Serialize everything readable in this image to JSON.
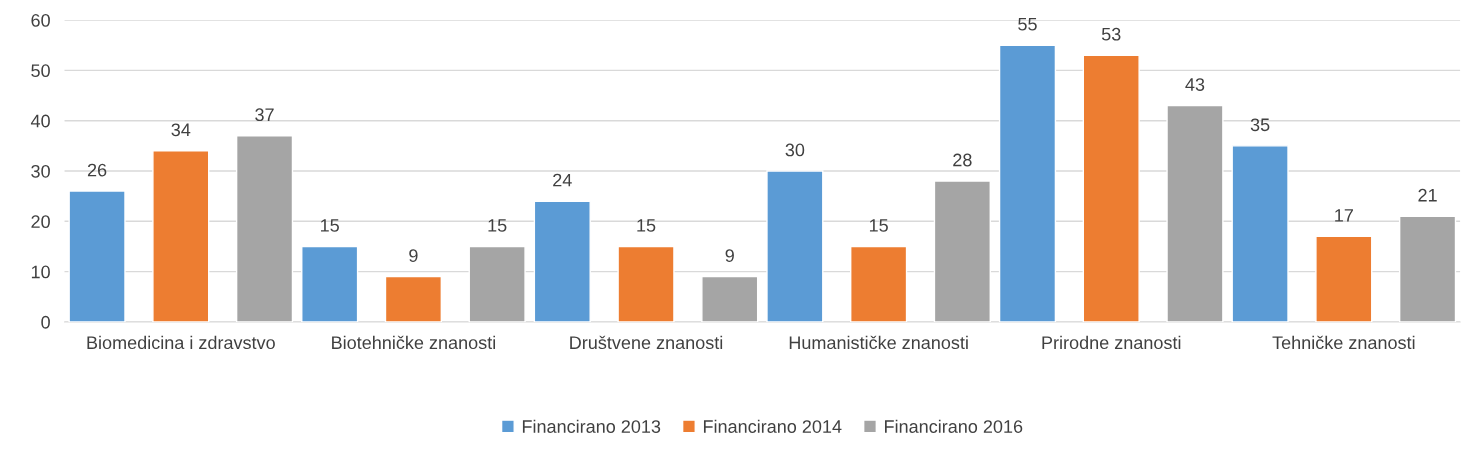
{
  "chart_data": {
    "type": "bar",
    "categories": [
      "Biomedicina i zdravstvo",
      "Biotehničke znanosti",
      "Društvene znanosti",
      "Humanističke znanosti",
      "Prirodne znanosti",
      "Tehničke znanosti"
    ],
    "series": [
      {
        "name": "Financirano 2013",
        "color": "#5b9bd5",
        "values": [
          26,
          15,
          24,
          30,
          55,
          35
        ]
      },
      {
        "name": "Financirano 2014",
        "color": "#ed7d31",
        "values": [
          34,
          9,
          15,
          15,
          53,
          17
        ]
      },
      {
        "name": "Financirano 2016",
        "color": "#a5a5a5",
        "values": [
          37,
          15,
          9,
          28,
          43,
          21
        ]
      }
    ],
    "ylim": [
      0,
      60
    ],
    "yticks": [
      0,
      10,
      20,
      30,
      40,
      50,
      60
    ],
    "grid": "y",
    "legend": "bottom",
    "data_labels": true
  }
}
